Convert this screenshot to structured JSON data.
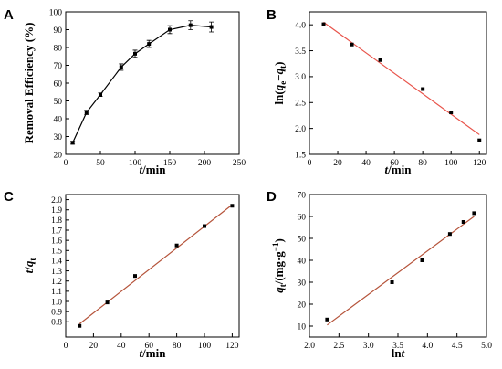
{
  "chart_data": [
    {
      "panel": "A",
      "type": "line",
      "xlabel": "t/min",
      "ylabel": "Removal Efficiency (%)",
      "xlim": [
        0,
        250
      ],
      "ylim": [
        20,
        100
      ],
      "xticks": [
        0,
        50,
        100,
        150,
        200,
        250
      ],
      "yticks": [
        20,
        30,
        40,
        50,
        60,
        70,
        80,
        90,
        100
      ],
      "grid": false,
      "marker": "square",
      "line_color": "#000000",
      "error_bars": true,
      "series": [
        {
          "x": [
            10,
            30,
            50,
            80,
            100,
            120,
            150,
            180,
            210
          ],
          "y": [
            26.5,
            43.5,
            53.5,
            69,
            76.5,
            82,
            90,
            92.5,
            91.5
          ],
          "err": [
            0.8,
            1.2,
            1.0,
            1.8,
            2.0,
            2.0,
            2.2,
            2.5,
            2.8
          ]
        }
      ]
    },
    {
      "panel": "B",
      "type": "scatter",
      "xlabel": "t/min",
      "ylabel": "ln(qe−qt)",
      "xlim": [
        0,
        125
      ],
      "ylim": [
        1.5,
        4.25
      ],
      "xticks": [
        0,
        20,
        40,
        60,
        80,
        100,
        120
      ],
      "yticks": [
        1.5,
        2.0,
        2.5,
        3.0,
        3.5,
        4.0
      ],
      "grid": false,
      "marker": "square",
      "fit_color": "#e8534a",
      "series": [
        {
          "x": [
            10,
            30,
            50,
            80,
            100,
            120
          ],
          "y": [
            4.01,
            3.62,
            3.32,
            2.76,
            2.31,
            1.77
          ]
        }
      ],
      "fit": {
        "x": [
          10,
          120
        ],
        "y": [
          4.05,
          1.88
        ]
      }
    },
    {
      "panel": "C",
      "type": "scatter",
      "xlabel": "t/min",
      "ylabel": "t/qt",
      "xlim": [
        0,
        125
      ],
      "ylim": [
        0.65,
        2.05
      ],
      "xticks": [
        0,
        20,
        40,
        60,
        80,
        100,
        120
      ],
      "yticks": [
        0.8,
        0.9,
        1.0,
        1.1,
        1.2,
        1.3,
        1.4,
        1.5,
        1.6,
        1.7,
        1.8,
        1.9,
        2.0
      ],
      "grid": false,
      "marker": "square",
      "fit_color": "#b5533a",
      "series": [
        {
          "x": [
            10,
            30,
            50,
            80,
            100,
            120
          ],
          "y": [
            0.76,
            0.99,
            1.25,
            1.55,
            1.74,
            1.94
          ]
        }
      ],
      "fit": {
        "x": [
          10,
          120
        ],
        "y": [
          0.78,
          1.95
        ]
      }
    },
    {
      "panel": "D",
      "type": "scatter",
      "xlabel": "lnt",
      "ylabel": "qt/(mg·g−1)",
      "xlim": [
        2.0,
        5.0
      ],
      "ylim": [
        5,
        70
      ],
      "xticks": [
        2.0,
        2.5,
        3.0,
        3.5,
        4.0,
        4.5,
        5.0
      ],
      "yticks": [
        10,
        20,
        30,
        40,
        50,
        60,
        70
      ],
      "grid": false,
      "marker": "square",
      "fit_color": "#b5533a",
      "series": [
        {
          "x": [
            2.3,
            3.4,
            3.91,
            4.38,
            4.61,
            4.79
          ],
          "y": [
            13,
            30,
            40,
            52,
            57.5,
            61.5
          ]
        }
      ],
      "fit": {
        "x": [
          2.3,
          4.79
        ],
        "y": [
          10.5,
          60
        ]
      }
    }
  ]
}
